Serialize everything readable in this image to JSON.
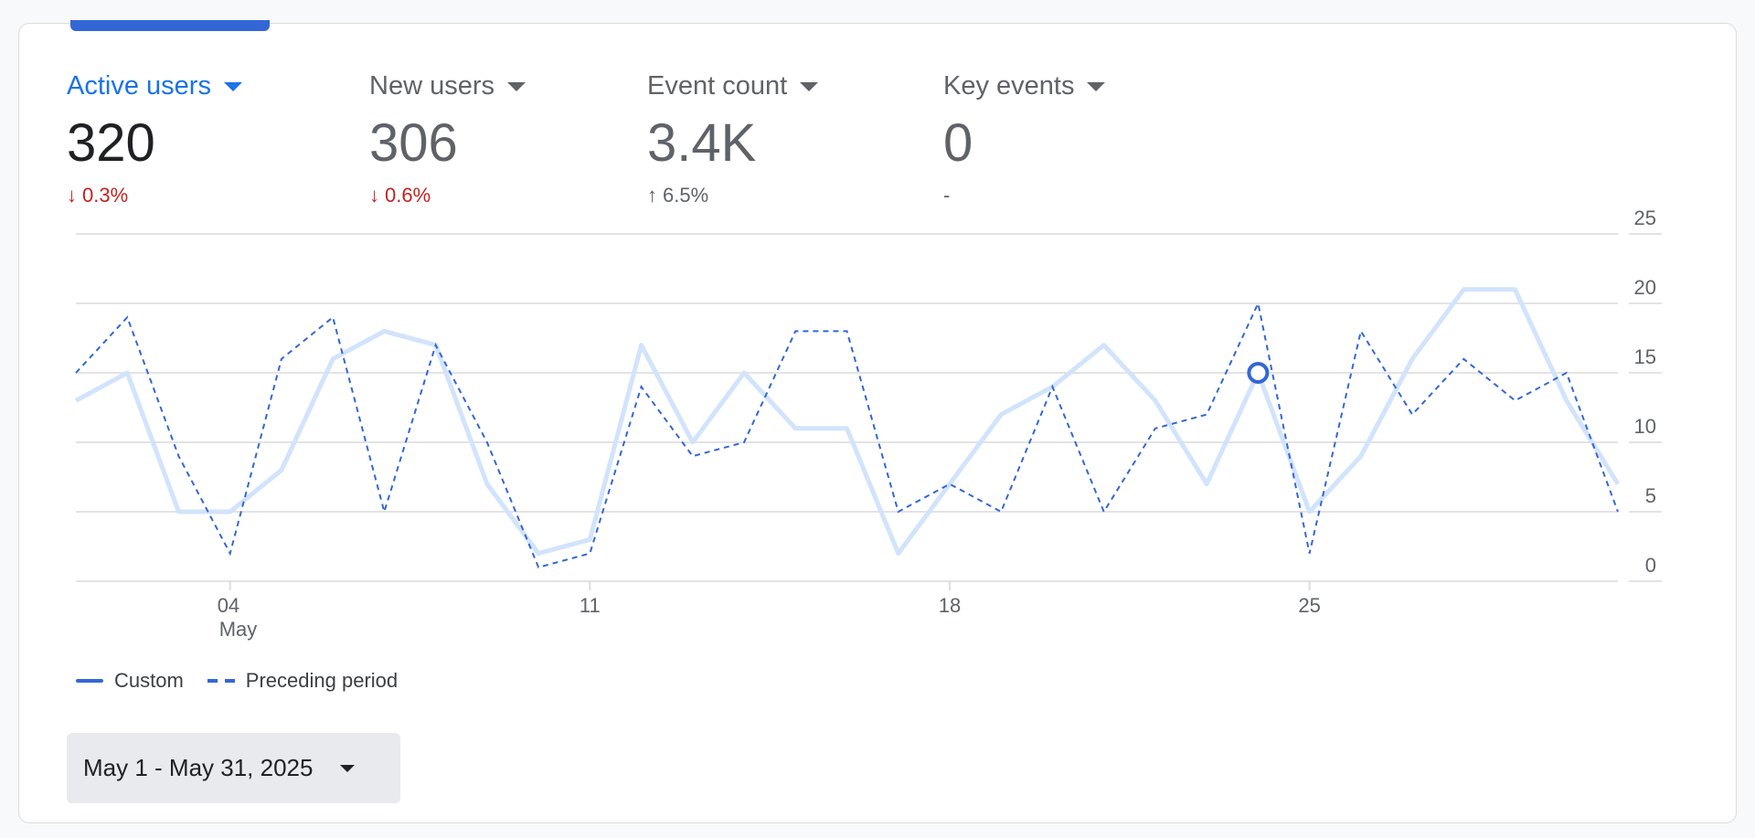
{
  "metrics": [
    {
      "label": "Active users",
      "value": "320",
      "delta": "0.3%",
      "direction": "down",
      "active": true
    },
    {
      "label": "New users",
      "value": "306",
      "delta": "0.6%",
      "direction": "down",
      "active": false
    },
    {
      "label": "Event count",
      "value": "3.4K",
      "delta": "6.5%",
      "direction": "up",
      "active": false
    },
    {
      "label": "Key events",
      "value": "0",
      "delta": "-",
      "direction": "none",
      "active": false
    }
  ],
  "legend": {
    "custom": "Custom",
    "preceding": "Preceding period"
  },
  "date_range": {
    "label": "May 1 - May 31, 2025"
  },
  "colors": {
    "accent": "#3367d6",
    "custom_line": "#d2e3fc",
    "down": "#c5221f"
  },
  "chart_data": {
    "type": "line",
    "x": [
      1,
      2,
      3,
      4,
      5,
      6,
      7,
      8,
      9,
      10,
      11,
      12,
      13,
      14,
      15,
      16,
      17,
      18,
      19,
      20,
      21,
      22,
      23,
      24,
      25,
      26,
      27,
      28,
      29,
      30,
      31
    ],
    "x_ticks": [
      {
        "day": 4,
        "label": "04",
        "sublabel": "May"
      },
      {
        "day": 11,
        "label": "11"
      },
      {
        "day": 18,
        "label": "18"
      },
      {
        "day": 25,
        "label": "25"
      }
    ],
    "y_ticks": [
      "0",
      "5",
      "10",
      "15",
      "20",
      "25"
    ],
    "ylim": [
      0,
      25
    ],
    "grid": true,
    "highlight": {
      "series": "Custom",
      "day": 24
    },
    "series": [
      {
        "name": "Custom",
        "style": "solid",
        "values": [
          13,
          15,
          5,
          5,
          8,
          16,
          18,
          17,
          7,
          2,
          3,
          17,
          10,
          15,
          11,
          11,
          2,
          7,
          12,
          14,
          17,
          13,
          7,
          15,
          5,
          9,
          16,
          21,
          21,
          13,
          7
        ]
      },
      {
        "name": "Preceding period",
        "style": "dashed",
        "values": [
          15,
          19,
          9,
          2,
          16,
          19,
          5,
          17,
          10,
          1,
          2,
          14,
          9,
          10,
          18,
          18,
          5,
          7,
          5,
          14,
          5,
          11,
          12,
          20,
          2,
          18,
          12,
          16,
          13,
          15,
          5
        ]
      }
    ]
  }
}
